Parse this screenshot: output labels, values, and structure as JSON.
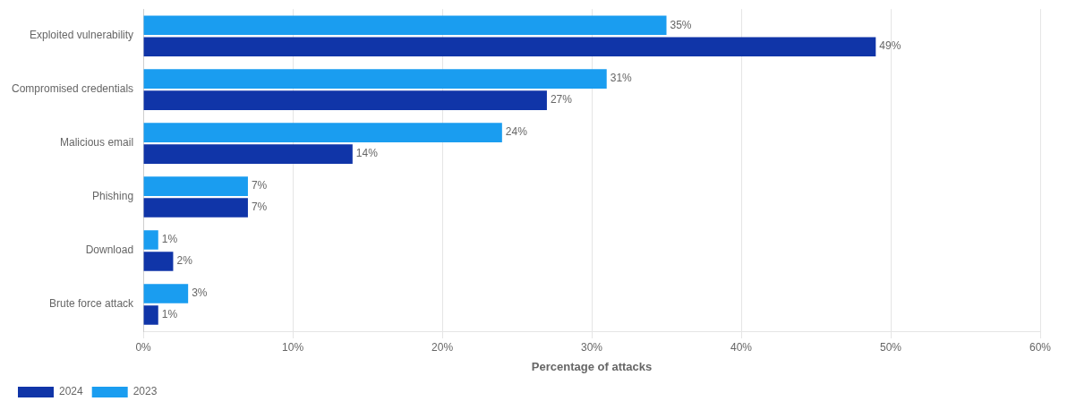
{
  "chart_data": {
    "type": "bar",
    "orientation": "horizontal",
    "categories": [
      "Exploited vulnerability",
      "Compromised credentials",
      "Malicious email",
      "Phishing",
      "Download",
      "Brute force attack"
    ],
    "series": [
      {
        "name": "2023",
        "color": "#1a9df0",
        "values": [
          35,
          31,
          24,
          7,
          1,
          3
        ],
        "value_labels": [
          "35%",
          "31%",
          "24%",
          "7%",
          "1%",
          "3%"
        ]
      },
      {
        "name": "2024",
        "color": "#1035a8",
        "values": [
          49,
          27,
          14,
          7,
          2,
          1
        ],
        "value_labels": [
          "49%",
          "27%",
          "14%",
          "7%",
          "2%",
          "1%"
        ]
      }
    ],
    "xlabel": "Percentage of attacks",
    "xlim": [
      0,
      60
    ],
    "xticks": [
      {
        "value": 0,
        "label": "0%"
      },
      {
        "value": 10,
        "label": "10%"
      },
      {
        "value": 20,
        "label": "20%"
      },
      {
        "value": 30,
        "label": "30%"
      },
      {
        "value": 40,
        "label": "40%"
      },
      {
        "value": 50,
        "label": "50%"
      },
      {
        "value": 60,
        "label": "60%"
      }
    ],
    "grid": true,
    "legend": "bottom",
    "data_labels": true
  }
}
